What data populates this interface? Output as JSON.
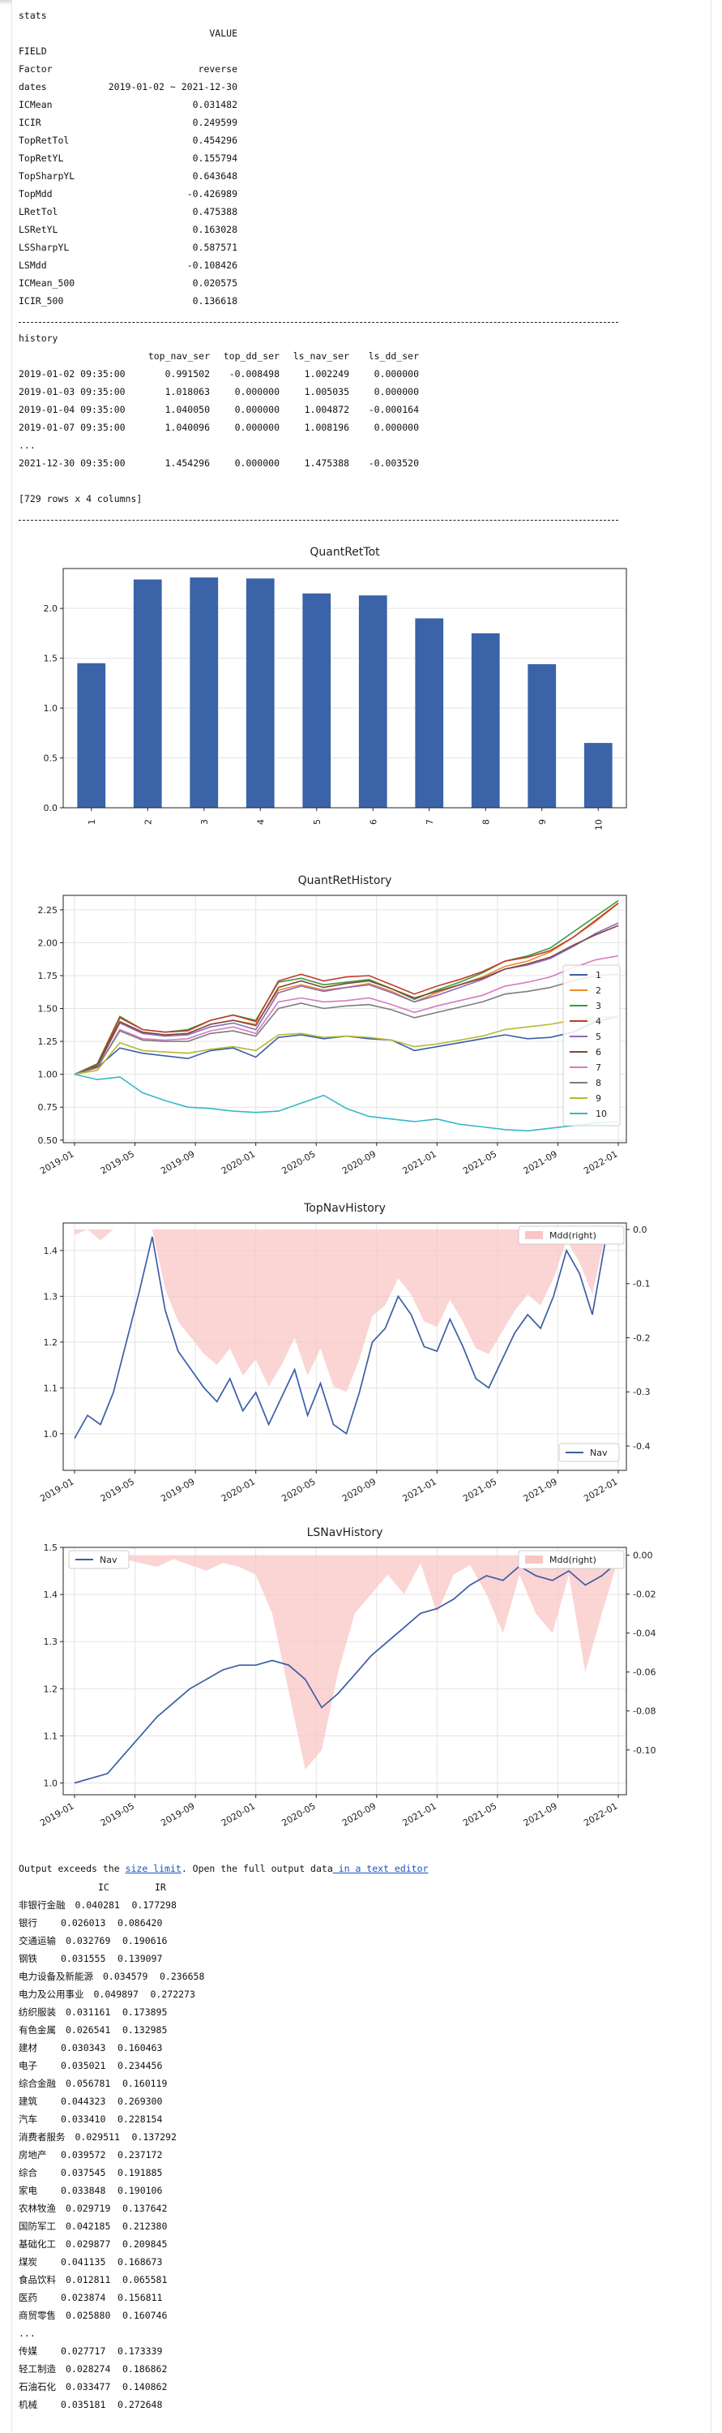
{
  "stats": {
    "title": "stats",
    "value_header": "VALUE",
    "field_header": "FIELD",
    "rows": [
      {
        "key": "Factor",
        "value": "reverse"
      },
      {
        "key": "dates",
        "value": "2019-01-02 ~ 2021-12-30"
      },
      {
        "key": "ICMean",
        "value": "0.031482"
      },
      {
        "key": "ICIR",
        "value": "0.249599"
      },
      {
        "key": "TopRetTol",
        "value": "0.454296"
      },
      {
        "key": "TopRetYL",
        "value": "0.155794"
      },
      {
        "key": "TopSharpYL",
        "value": "0.643648"
      },
      {
        "key": "TopMdd",
        "value": "-0.426989"
      },
      {
        "key": "LRetTol",
        "value": "0.475388"
      },
      {
        "key": "LSRetYL",
        "value": "0.163028"
      },
      {
        "key": "LSSharpYL",
        "value": "0.587571"
      },
      {
        "key": "LSMdd",
        "value": "-0.108426"
      },
      {
        "key": "ICMean_500",
        "value": "0.020575"
      },
      {
        "key": "ICIR_500",
        "value": "0.136618"
      }
    ]
  },
  "history": {
    "title": "history",
    "columns": [
      "top_nav_ser",
      "top_dd_ser",
      "ls_nav_ser",
      "ls_dd_ser"
    ],
    "rows": [
      {
        "index": "2019-01-02 09:35:00",
        "cells": [
          "0.991502",
          "-0.008498",
          "1.002249",
          "0.000000"
        ]
      },
      {
        "index": "2019-01-03 09:35:00",
        "cells": [
          "1.018063",
          "0.000000",
          "1.005035",
          "0.000000"
        ]
      },
      {
        "index": "2019-01-04 09:35:00",
        "cells": [
          "1.040050",
          "0.000000",
          "1.004872",
          "-0.000164"
        ]
      },
      {
        "index": "2019-01-07 09:35:00",
        "cells": [
          "1.040096",
          "0.000000",
          "1.008196",
          "0.000000"
        ]
      }
    ],
    "ellipsis": "...",
    "last_row": {
      "index": "2021-12-30 09:35:00",
      "cells": [
        "1.454296",
        "0.000000",
        "1.475388",
        "-0.003520"
      ]
    },
    "shape": "[729 rows x 4 columns]"
  },
  "charts": [
    {
      "type": "bar",
      "title": "QuantRetTot",
      "categories": [
        "1",
        "2",
        "3",
        "4",
        "5",
        "6",
        "7",
        "8",
        "9",
        "10"
      ],
      "values": [
        1.45,
        2.29,
        2.31,
        2.3,
        2.15,
        2.13,
        1.9,
        1.75,
        1.44,
        0.65
      ],
      "ylim": [
        0,
        2.4
      ],
      "yticks": [
        "0.0",
        "0.5",
        "1.0",
        "1.5",
        "2.0"
      ],
      "color": "#3a63a8",
      "grid": true
    },
    {
      "type": "line",
      "title": "QuantRetHistory",
      "ylim": [
        0.48,
        2.36
      ],
      "yticks": [
        "0.50",
        "0.75",
        "1.00",
        "1.25",
        "1.50",
        "1.75",
        "2.00",
        "2.25"
      ],
      "xticks": [
        "2019-01",
        "2019-05",
        "2019-09",
        "2020-01",
        "2020-05",
        "2020-09",
        "2021-01",
        "2021-05",
        "2021-09",
        "2022-01"
      ],
      "legend_position": "right",
      "grid": true,
      "series": [
        {
          "name": "1",
          "color": "#3b5ea6",
          "values": [
            1.0,
            1.05,
            1.2,
            1.16,
            1.14,
            1.12,
            1.18,
            1.2,
            1.13,
            1.28,
            1.3,
            1.27,
            1.29,
            1.27,
            1.26,
            1.18,
            1.21,
            1.24,
            1.27,
            1.3,
            1.27,
            1.28,
            1.32,
            1.4,
            1.44
          ]
        },
        {
          "name": "2",
          "color": "#ee8a2b",
          "values": [
            1.0,
            1.07,
            1.4,
            1.32,
            1.3,
            1.31,
            1.38,
            1.41,
            1.38,
            1.64,
            1.68,
            1.64,
            1.66,
            1.69,
            1.63,
            1.55,
            1.62,
            1.68,
            1.74,
            1.82,
            1.86,
            1.93,
            2.04,
            2.16,
            2.3
          ]
        },
        {
          "name": "3",
          "color": "#3c9a3c",
          "values": [
            1.0,
            1.08,
            1.44,
            1.34,
            1.32,
            1.34,
            1.41,
            1.45,
            1.41,
            1.7,
            1.73,
            1.68,
            1.7,
            1.72,
            1.65,
            1.57,
            1.64,
            1.7,
            1.77,
            1.86,
            1.9,
            1.96,
            2.08,
            2.2,
            2.32
          ]
        },
        {
          "name": "4",
          "color": "#c23b2e",
          "values": [
            1.0,
            1.07,
            1.43,
            1.34,
            1.32,
            1.33,
            1.41,
            1.45,
            1.4,
            1.71,
            1.76,
            1.71,
            1.74,
            1.75,
            1.68,
            1.61,
            1.67,
            1.72,
            1.78,
            1.86,
            1.89,
            1.94,
            2.04,
            2.17,
            2.3
          ]
        },
        {
          "name": "5",
          "color": "#8d6ab8",
          "values": [
            1.0,
            1.06,
            1.39,
            1.31,
            1.29,
            1.3,
            1.36,
            1.39,
            1.34,
            1.62,
            1.67,
            1.63,
            1.66,
            1.68,
            1.62,
            1.55,
            1.6,
            1.66,
            1.72,
            1.8,
            1.83,
            1.88,
            1.97,
            2.07,
            2.15
          ]
        },
        {
          "name": "6",
          "color": "#7b4a3c",
          "values": [
            1.0,
            1.06,
            1.4,
            1.32,
            1.3,
            1.31,
            1.38,
            1.41,
            1.37,
            1.66,
            1.71,
            1.66,
            1.69,
            1.71,
            1.65,
            1.58,
            1.63,
            1.68,
            1.73,
            1.8,
            1.84,
            1.89,
            1.98,
            2.06,
            2.13
          ]
        },
        {
          "name": "7",
          "color": "#d57bc0",
          "values": [
            1.0,
            1.05,
            1.34,
            1.27,
            1.26,
            1.27,
            1.33,
            1.36,
            1.31,
            1.55,
            1.58,
            1.55,
            1.56,
            1.58,
            1.53,
            1.47,
            1.52,
            1.56,
            1.6,
            1.67,
            1.7,
            1.74,
            1.81,
            1.87,
            1.9
          ]
        },
        {
          "name": "8",
          "color": "#7d7d7d",
          "values": [
            1.0,
            1.05,
            1.33,
            1.26,
            1.25,
            1.25,
            1.31,
            1.33,
            1.29,
            1.5,
            1.54,
            1.5,
            1.52,
            1.53,
            1.49,
            1.43,
            1.47,
            1.51,
            1.55,
            1.61,
            1.63,
            1.66,
            1.71,
            1.75,
            1.76
          ]
        },
        {
          "name": "9",
          "color": "#b6b833",
          "values": [
            1.0,
            1.03,
            1.24,
            1.18,
            1.17,
            1.16,
            1.19,
            1.21,
            1.18,
            1.3,
            1.31,
            1.28,
            1.29,
            1.28,
            1.26,
            1.21,
            1.23,
            1.26,
            1.29,
            1.34,
            1.36,
            1.38,
            1.41,
            1.43,
            1.44
          ]
        },
        {
          "name": "10",
          "color": "#35b8c8",
          "values": [
            1.0,
            0.96,
            0.98,
            0.86,
            0.8,
            0.75,
            0.74,
            0.72,
            0.71,
            0.72,
            0.78,
            0.84,
            0.74,
            0.68,
            0.66,
            0.64,
            0.66,
            0.62,
            0.6,
            0.58,
            0.57,
            0.59,
            0.61,
            0.63,
            0.64
          ]
        }
      ]
    },
    {
      "type": "line",
      "title": "TopNavHistory",
      "ylim": [
        0.92,
        1.46
      ],
      "yticks": [
        "1.0",
        "1.1",
        "1.2",
        "1.3",
        "1.4"
      ],
      "y2lim": [
        -0.445,
        0.012
      ],
      "y2ticks": [
        "0.0",
        "-0.1",
        "-0.2",
        "-0.3",
        "-0.4"
      ],
      "xticks": [
        "2019-01",
        "2019-05",
        "2019-09",
        "2020-01",
        "2020-05",
        "2020-09",
        "2021-01",
        "2021-05",
        "2021-09",
        "2022-01"
      ],
      "nav_label": "Nav",
      "mdd_label": "Mdd(right)",
      "nav_color": "#3b5ea6",
      "mdd_color": "#f9c6c6",
      "grid": true,
      "nav": [
        0.99,
        1.04,
        1.02,
        1.09,
        1.2,
        1.31,
        1.43,
        1.27,
        1.18,
        1.14,
        1.1,
        1.07,
        1.12,
        1.05,
        1.09,
        1.02,
        1.08,
        1.14,
        1.04,
        1.11,
        1.02,
        1.0,
        1.09,
        1.2,
        1.23,
        1.3,
        1.26,
        1.19,
        1.18,
        1.25,
        1.19,
        1.12,
        1.1,
        1.16,
        1.22,
        1.26,
        1.23,
        1.3,
        1.4,
        1.35,
        1.26,
        1.42,
        1.45
      ],
      "mdd": [
        -0.01,
        0.0,
        -0.02,
        0.0,
        0.0,
        0.0,
        0.0,
        -0.11,
        -0.17,
        -0.2,
        -0.23,
        -0.25,
        -0.22,
        -0.27,
        -0.24,
        -0.29,
        -0.25,
        -0.2,
        -0.27,
        -0.22,
        -0.29,
        -0.3,
        -0.24,
        -0.16,
        -0.14,
        -0.09,
        -0.12,
        -0.17,
        -0.18,
        -0.13,
        -0.17,
        -0.22,
        -0.23,
        -0.19,
        -0.15,
        -0.12,
        -0.14,
        -0.09,
        -0.02,
        -0.06,
        -0.12,
        -0.01,
        0.0
      ]
    },
    {
      "type": "line",
      "title": "LSNavHistory",
      "ylim": [
        0.975,
        1.5
      ],
      "yticks": [
        "1.0",
        "1.1",
        "1.2",
        "1.3",
        "1.4",
        "1.5"
      ],
      "y2lim": [
        -0.123,
        0.004
      ],
      "y2ticks": [
        "0.00",
        "-0.02",
        "-0.04",
        "-0.06",
        "-0.08",
        "-0.10"
      ],
      "xticks": [
        "2019-01",
        "2019-05",
        "2019-09",
        "2020-01",
        "2020-05",
        "2020-09",
        "2021-01",
        "2021-05",
        "2021-09",
        "2022-01"
      ],
      "nav_label": "Nav",
      "mdd_label": "Mdd(right)",
      "nav_color": "#3b5ea6",
      "mdd_color": "#f9c6c6",
      "grid": true,
      "nav": [
        1.0,
        1.01,
        1.02,
        1.06,
        1.1,
        1.14,
        1.17,
        1.2,
        1.22,
        1.24,
        1.25,
        1.25,
        1.26,
        1.25,
        1.22,
        1.16,
        1.19,
        1.23,
        1.27,
        1.3,
        1.33,
        1.36,
        1.37,
        1.39,
        1.42,
        1.44,
        1.43,
        1.46,
        1.44,
        1.43,
        1.45,
        1.42,
        1.44,
        1.47
      ],
      "mdd": [
        0.0,
        -0.003,
        -0.005,
        -0.002,
        -0.004,
        -0.006,
        -0.002,
        -0.005,
        -0.008,
        -0.004,
        -0.006,
        -0.01,
        -0.03,
        -0.07,
        -0.11,
        -0.1,
        -0.06,
        -0.03,
        -0.02,
        -0.01,
        -0.02,
        -0.004,
        -0.03,
        -0.01,
        -0.005,
        -0.02,
        -0.04,
        -0.01,
        -0.03,
        -0.04,
        -0.01,
        -0.06,
        -0.03,
        -0.002
      ]
    }
  ],
  "output_notice": {
    "prefix": "Output exceeds the ",
    "size_link": "size limit",
    "middle": ". Open the full output data",
    "editor_link": " in a text editor"
  },
  "industry": {
    "columns": [
      "IC",
      "IR"
    ],
    "rows": [
      {
        "name": "非银行金融",
        "ic": "0.040281",
        "ir": "0.177298"
      },
      {
        "name": "银行",
        "ic": "0.026013",
        "ir": "0.086420"
      },
      {
        "name": "交通运输",
        "ic": "0.032769",
        "ir": "0.190616"
      },
      {
        "name": "钢铁",
        "ic": "0.031555",
        "ir": "0.139097"
      },
      {
        "name": "电力设备及新能源",
        "ic": "0.034579",
        "ir": "0.236658"
      },
      {
        "name": "电力及公用事业",
        "ic": "0.049897",
        "ir": "0.272273"
      },
      {
        "name": "纺织服装",
        "ic": "0.031161",
        "ir": "0.173895"
      },
      {
        "name": "有色金属",
        "ic": "0.026541",
        "ir": "0.132985"
      },
      {
        "name": "建材",
        "ic": "0.030343",
        "ir": "0.160463"
      },
      {
        "name": "电子",
        "ic": "0.035021",
        "ir": "0.234456"
      },
      {
        "name": "综合金融",
        "ic": "0.056781",
        "ir": "0.160119"
      },
      {
        "name": "建筑",
        "ic": "0.044323",
        "ir": "0.269300"
      },
      {
        "name": "汽车",
        "ic": "0.033410",
        "ir": "0.228154"
      },
      {
        "name": "消费者服务",
        "ic": "0.029511",
        "ir": "0.137292"
      },
      {
        "name": "房地产",
        "ic": "0.039572",
        "ir": "0.237172"
      },
      {
        "name": "综合",
        "ic": "0.037545",
        "ir": "0.191885"
      },
      {
        "name": "家电",
        "ic": "0.033848",
        "ir": "0.190106"
      },
      {
        "name": "农林牧渔",
        "ic": "0.029719",
        "ir": "0.137642"
      },
      {
        "name": "国防军工",
        "ic": "0.042185",
        "ir": "0.212380"
      },
      {
        "name": "基础化工",
        "ic": "0.029877",
        "ir": "0.209845"
      },
      {
        "name": "煤炭",
        "ic": "0.041135",
        "ir": "0.168673"
      },
      {
        "name": "食品饮料",
        "ic": "0.012811",
        "ir": "0.065581"
      },
      {
        "name": "医药",
        "ic": "0.023874",
        "ir": "0.156811"
      },
      {
        "name": "商贸零售",
        "ic": "0.025880",
        "ir": "0.160746"
      }
    ],
    "ellipsis": "...",
    "tail_rows": [
      {
        "name": "传媒",
        "ic": "0.027717",
        "ir": "0.173339"
      },
      {
        "name": "轻工制造",
        "ic": "0.028274",
        "ir": "0.186862"
      },
      {
        "name": "石油石化",
        "ic": "0.033477",
        "ir": "0.140862"
      },
      {
        "name": "机械",
        "ic": "0.035181",
        "ir": "0.272648"
      }
    ]
  }
}
